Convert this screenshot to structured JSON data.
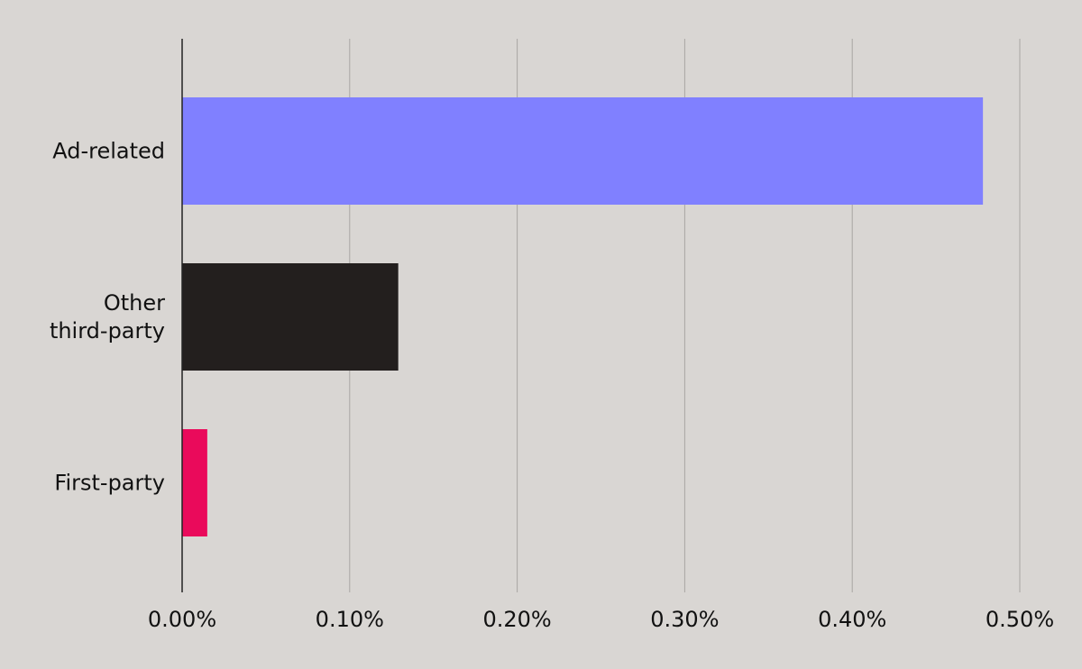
{
  "chart_data": {
    "type": "bar",
    "orientation": "horizontal",
    "categories": [
      [
        "Ad-related"
      ],
      [
        "Other",
        "third-party"
      ],
      [
        "First-party"
      ]
    ],
    "values": [
      0.478,
      0.129,
      0.015
    ],
    "colors": [
      "#8080ff",
      "#231f1e",
      "#ea0a5b"
    ],
    "xlim": [
      0,
      0.5
    ],
    "xticks": [
      0,
      0.1,
      0.2,
      0.3,
      0.4,
      0.5
    ],
    "xtick_labels": [
      "0.00%",
      "0.10%",
      "0.20%",
      "0.30%",
      "0.40%",
      "0.50%"
    ],
    "grid": "vertical",
    "legend": "none"
  }
}
